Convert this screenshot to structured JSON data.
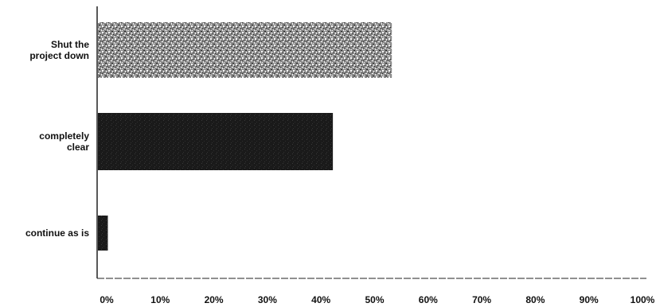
{
  "chart_data": {
    "type": "bar",
    "orientation": "horizontal",
    "title": "",
    "xlabel": "",
    "ylabel": "",
    "categories": [
      [
        "Shut the",
        "project down"
      ],
      [
        "completely",
        "clear"
      ],
      [
        "continue as is"
      ]
    ],
    "values": [
      55,
      44,
      2
    ],
    "xlim": [
      0,
      100
    ],
    "x_ticks": [
      "0%",
      "10%",
      "20%",
      "30%",
      "40%",
      "50%",
      "60%",
      "70%",
      "80%",
      "90%",
      "100%"
    ],
    "bar_styles": [
      "speckled",
      "dark",
      "dark"
    ],
    "grid": false,
    "legend": "none"
  },
  "colors": {
    "dark_bar": "#1a1a1a",
    "speckle_bar": "#555555",
    "axis": "#222222",
    "text": "#111111"
  }
}
